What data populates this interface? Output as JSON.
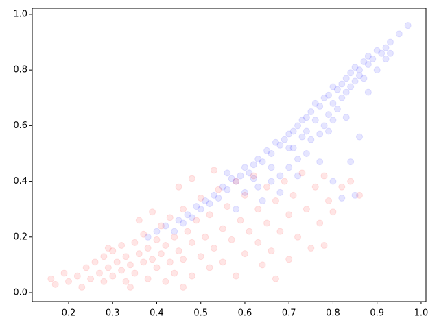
{
  "chart_data": {
    "type": "scatter",
    "xlim": [
      0.1175,
      1.011
    ],
    "ylim": [
      -0.032,
      1.022
    ],
    "xticks": [
      0.2,
      0.3,
      0.4,
      0.5,
      0.6,
      0.7,
      0.8,
      0.9,
      {
        "value": 1,
        "label": "1.0"
      }
    ],
    "yticks": [
      {
        "value": 0,
        "label": "0.0"
      },
      0.2,
      0.4,
      0.6,
      0.8,
      {
        "value": 1,
        "label": "1.0"
      }
    ],
    "alpha": 0.1,
    "series": [
      {
        "color": "blue",
        "x": [
          0.97,
          0.95,
          0.93,
          0.92,
          0.91,
          0.9,
          0.89,
          0.88,
          0.88,
          0.87,
          0.86,
          0.86,
          0.85,
          0.85,
          0.84,
          0.84,
          0.83,
          0.83,
          0.82,
          0.82,
          0.81,
          0.81,
          0.8,
          0.8,
          0.8,
          0.79,
          0.79,
          0.78,
          0.78,
          0.77,
          0.77,
          0.76,
          0.76,
          0.75,
          0.75,
          0.74,
          0.74,
          0.73,
          0.73,
          0.72,
          0.72,
          0.71,
          0.71,
          0.7,
          0.7,
          0.69,
          0.68,
          0.68,
          0.67,
          0.66,
          0.66,
          0.65,
          0.64,
          0.63,
          0.63,
          0.62,
          0.61,
          0.6,
          0.6,
          0.59,
          0.58,
          0.57,
          0.56,
          0.55,
          0.54,
          0.53,
          0.52,
          0.51,
          0.5,
          0.49,
          0.48,
          0.47,
          0.46,
          0.45,
          0.44,
          0.42,
          0.4,
          0.38,
          0.85,
          0.82,
          0.8,
          0.84,
          0.86,
          0.88,
          0.9,
          0.83,
          0.77,
          0.72,
          0.68,
          0.64,
          0.58,
          0.93,
          0.87,
          0.79,
          0.74,
          0.7,
          0.66,
          0.62,
          0.56,
          0.92
        ],
        "values": [
          0.96,
          0.93,
          0.9,
          0.88,
          0.86,
          0.87,
          0.84,
          0.85,
          0.82,
          0.83,
          0.8,
          0.78,
          0.81,
          0.76,
          0.79,
          0.74,
          0.77,
          0.72,
          0.75,
          0.7,
          0.73,
          0.66,
          0.74,
          0.68,
          0.62,
          0.71,
          0.64,
          0.7,
          0.6,
          0.67,
          0.57,
          0.68,
          0.62,
          0.65,
          0.55,
          0.63,
          0.5,
          0.62,
          0.56,
          0.6,
          0.48,
          0.58,
          0.52,
          0.57,
          0.45,
          0.55,
          0.53,
          0.42,
          0.54,
          0.5,
          0.4,
          0.51,
          0.47,
          0.48,
          0.38,
          0.46,
          0.43,
          0.45,
          0.36,
          0.42,
          0.4,
          0.41,
          0.37,
          0.38,
          0.34,
          0.35,
          0.32,
          0.33,
          0.3,
          0.31,
          0.27,
          0.28,
          0.25,
          0.26,
          0.22,
          0.24,
          0.22,
          0.2,
          0.35,
          0.34,
          0.4,
          0.47,
          0.56,
          0.72,
          0.8,
          0.63,
          0.47,
          0.42,
          0.36,
          0.33,
          0.3,
          0.86,
          0.77,
          0.58,
          0.58,
          0.52,
          0.45,
          0.41,
          0.43,
          0.84
        ]
      },
      {
        "color": "red",
        "x": [
          0.16,
          0.17,
          0.19,
          0.2,
          0.22,
          0.23,
          0.24,
          0.25,
          0.26,
          0.27,
          0.28,
          0.28,
          0.29,
          0.3,
          0.3,
          0.31,
          0.32,
          0.32,
          0.33,
          0.33,
          0.34,
          0.35,
          0.35,
          0.36,
          0.37,
          0.37,
          0.38,
          0.38,
          0.39,
          0.4,
          0.4,
          0.41,
          0.41,
          0.42,
          0.42,
          0.43,
          0.43,
          0.44,
          0.44,
          0.45,
          0.46,
          0.46,
          0.47,
          0.48,
          0.48,
          0.49,
          0.5,
          0.5,
          0.51,
          0.52,
          0.52,
          0.53,
          0.54,
          0.55,
          0.55,
          0.56,
          0.57,
          0.58,
          0.58,
          0.59,
          0.6,
          0.6,
          0.61,
          0.62,
          0.63,
          0.63,
          0.64,
          0.65,
          0.65,
          0.66,
          0.67,
          0.67,
          0.68,
          0.69,
          0.7,
          0.7,
          0.71,
          0.72,
          0.73,
          0.74,
          0.75,
          0.76,
          0.77,
          0.78,
          0.78,
          0.79,
          0.8,
          0.82,
          0.84,
          0.86,
          0.36,
          0.39,
          0.45,
          0.48,
          0.34,
          0.46,
          0.29,
          0.53
        ],
        "values": [
          0.05,
          0.03,
          0.07,
          0.04,
          0.06,
          0.02,
          0.09,
          0.05,
          0.11,
          0.07,
          0.04,
          0.13,
          0.09,
          0.06,
          0.15,
          0.11,
          0.08,
          0.17,
          0.04,
          0.13,
          0.1,
          0.18,
          0.07,
          0.14,
          0.11,
          0.21,
          0.05,
          0.16,
          0.12,
          0.19,
          0.09,
          0.24,
          0.14,
          0.04,
          0.17,
          0.11,
          0.27,
          0.2,
          0.07,
          0.15,
          0.3,
          0.12,
          0.22,
          0.06,
          0.18,
          0.26,
          0.13,
          0.34,
          0.2,
          0.09,
          0.28,
          0.16,
          0.37,
          0.23,
          0.11,
          0.31,
          0.19,
          0.4,
          0.06,
          0.26,
          0.14,
          0.35,
          0.22,
          0.42,
          0.18,
          0.3,
          0.1,
          0.38,
          0.25,
          0.15,
          0.33,
          0.05,
          0.22,
          0.4,
          0.28,
          0.12,
          0.35,
          0.2,
          0.43,
          0.3,
          0.16,
          0.38,
          0.25,
          0.42,
          0.17,
          0.33,
          0.29,
          0.38,
          0.4,
          0.35,
          0.26,
          0.29,
          0.38,
          0.41,
          0.02,
          0.02,
          0.16,
          0.44
        ]
      }
    ]
  }
}
